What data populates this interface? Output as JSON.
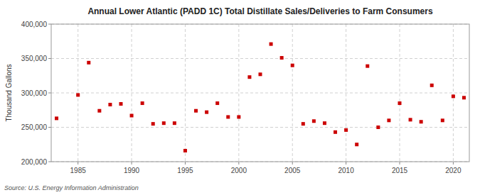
{
  "chart_data": {
    "type": "scatter",
    "title": "Annual Lower Atlantic (PADD 1C) Total Distillate Sales/Deliveries to Farm Consumers",
    "y_label": "Thousand Gallons",
    "source": "Source: U.S. Energy Information Administration",
    "x": [
      1983,
      1985,
      1986,
      1987,
      1988,
      1989,
      1990,
      1991,
      1992,
      1993,
      1994,
      1995,
      1996,
      1997,
      1998,
      1999,
      2000,
      2001,
      2002,
      2003,
      2004,
      2005,
      2006,
      2007,
      2008,
      2009,
      2010,
      2011,
      2012,
      2013,
      2014,
      2015,
      2016,
      2017,
      2018,
      2019,
      2020,
      2021
    ],
    "values": [
      263000,
      297000,
      344000,
      274000,
      283000,
      284000,
      267000,
      285000,
      255000,
      256000,
      256000,
      216000,
      274000,
      272000,
      285000,
      265000,
      265000,
      323000,
      327000,
      371000,
      351000,
      340000,
      255000,
      259000,
      256000,
      243000,
      246000,
      225000,
      339000,
      250000,
      260000,
      285000,
      261000,
      258000,
      311000,
      260000,
      295000,
      293000
    ],
    "color": "#cc0000",
    "marker": "square",
    "xlim": [
      1982.5,
      2021.5
    ],
    "ylim": [
      200000,
      400000
    ],
    "xticks": [
      1985,
      1990,
      1995,
      2000,
      2005,
      2010,
      2015,
      2020
    ],
    "yticks": [
      {
        "value": 200000,
        "label": "200,000"
      },
      {
        "value": 250000,
        "label": "250,000"
      },
      {
        "value": 300000,
        "label": "300,000"
      },
      {
        "value": 350000,
        "label": "350,000"
      },
      {
        "value": 400000,
        "label": "400,000"
      }
    ],
    "grid": true
  }
}
